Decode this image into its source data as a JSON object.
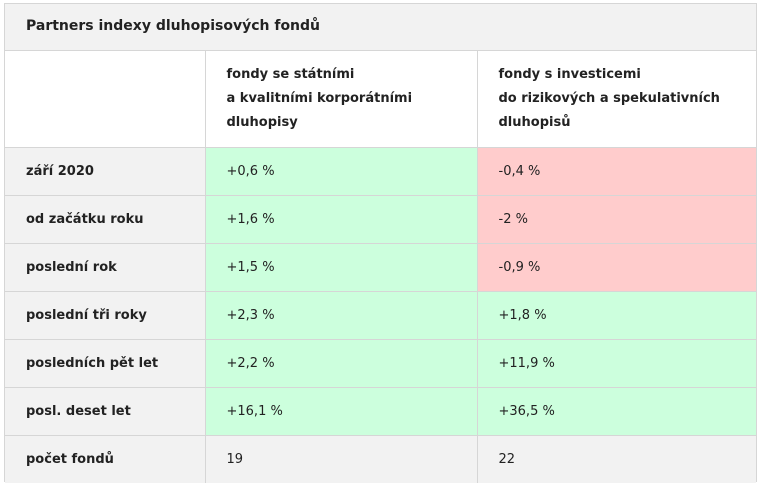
{
  "table": {
    "title": "Partners indexy dluhopisových fondů",
    "headers": [
      "",
      "fondy se státními\na kvalitními korporátními\ndluhopisy",
      "fondy s investicemi\ndo rizikových a spekulativních\ndluhopisů"
    ],
    "rows": [
      {
        "label": "září 2020",
        "col1": "+0,6 %",
        "col2": "-0,4 %"
      },
      {
        "label": "od začátku roku",
        "col1": "+1,6 %",
        "col2": "-2 %"
      },
      {
        "label": "poslední rok",
        "col1": "+1,5 %",
        "col2": "-0,9 %"
      },
      {
        "label": "poslední tři roky",
        "col1": "+2,3 %",
        "col2": "+1,8 %"
      },
      {
        "label": "posledních pět let",
        "col1": "+2,2 %",
        "col2": "+11,9 %"
      },
      {
        "label": "posl. deset let",
        "col1": "+16,1 %",
        "col2": "+36,5 %"
      },
      {
        "label": "počet fondů",
        "col1": "19",
        "col2": "22"
      }
    ]
  },
  "colors": {
    "positive": "#ccffdd",
    "negative": "#ffcccc",
    "neutral": "#f2f2f2",
    "border": "#d6d6d6"
  }
}
